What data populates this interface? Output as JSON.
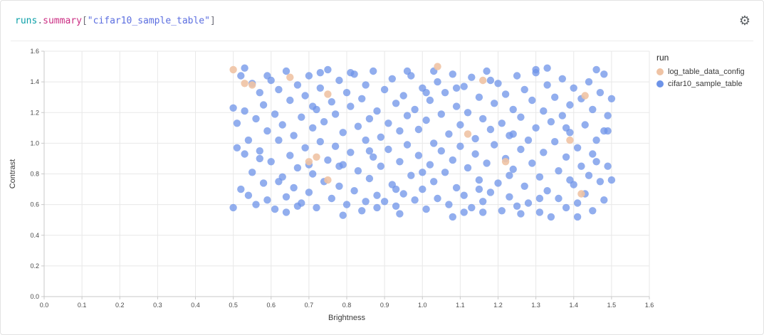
{
  "panel": {
    "title_tokens": [
      {
        "text": "runs",
        "color": "#0ba0a8"
      },
      {
        "text": ".",
        "color": "#6e6e78"
      },
      {
        "text": "summary",
        "color": "#cb2e83"
      },
      {
        "text": "[",
        "color": "#6e6e78"
      },
      {
        "text": "\"cifar10_sample_table\"",
        "color": "#5b6ee0"
      },
      {
        "text": "]",
        "color": "#6e6e78"
      }
    ],
    "gear_glyph": "⚙"
  },
  "legend": {
    "title": "run",
    "items": [
      {
        "label": "log_table_data_config",
        "color": "#efc3a4"
      },
      {
        "label": "cifar10_sample_table",
        "color": "#6d93e8"
      }
    ]
  },
  "chart_data": {
    "type": "scatter",
    "title": "",
    "xlabel": "Brightness",
    "ylabel": "Contrast",
    "xlim": [
      0,
      1.6
    ],
    "ylim": [
      0,
      1.6
    ],
    "x_tick_step": 0.1,
    "y_tick_step": 0.2,
    "grid": true,
    "legend_position": "right",
    "series": [
      {
        "name": "log_table_data_config",
        "color": "#efc3a4",
        "opacity": 0.9,
        "points": [
          [
            0.5,
            1.48
          ],
          [
            0.53,
            1.39
          ],
          [
            0.55,
            1.38
          ],
          [
            0.65,
            1.43
          ],
          [
            0.75,
            1.32
          ],
          [
            0.7,
            0.88
          ],
          [
            0.72,
            0.91
          ],
          [
            0.75,
            0.76
          ],
          [
            1.04,
            1.5
          ],
          [
            1.12,
            1.06
          ],
          [
            1.16,
            1.41
          ],
          [
            1.22,
            0.88
          ],
          [
            1.39,
            1.02
          ],
          [
            1.42,
            0.67
          ],
          [
            1.43,
            1.31
          ]
        ]
      },
      {
        "name": "cifar10_sample_table",
        "color": "#6d93e8",
        "opacity": 0.75,
        "points": [
          [
            0.5,
            0.58
          ],
          [
            0.5,
            1.23
          ],
          [
            0.51,
            0.97
          ],
          [
            0.51,
            1.13
          ],
          [
            0.52,
            0.7
          ],
          [
            0.52,
            1.44
          ],
          [
            0.53,
            0.93
          ],
          [
            0.53,
            1.21
          ],
          [
            0.54,
            0.66
          ],
          [
            0.54,
            1.02
          ],
          [
            0.55,
            1.39
          ],
          [
            0.55,
            0.81
          ],
          [
            0.56,
            1.16
          ],
          [
            0.56,
            0.6
          ],
          [
            0.57,
            1.33
          ],
          [
            0.57,
            0.95
          ],
          [
            0.58,
            1.25
          ],
          [
            0.58,
            0.74
          ],
          [
            0.59,
            1.08
          ],
          [
            0.59,
            0.63
          ],
          [
            0.6,
            1.41
          ],
          [
            0.6,
            0.88
          ],
          [
            0.61,
            1.19
          ],
          [
            0.61,
            0.57
          ],
          [
            0.62,
            1.02
          ],
          [
            0.62,
            1.35
          ],
          [
            0.63,
            0.78
          ],
          [
            0.63,
            1.12
          ],
          [
            0.64,
            0.65
          ],
          [
            0.64,
            1.47
          ],
          [
            0.65,
            0.92
          ],
          [
            0.65,
            1.28
          ],
          [
            0.66,
            0.71
          ],
          [
            0.66,
            1.05
          ],
          [
            0.67,
            1.38
          ],
          [
            0.67,
            0.84
          ],
          [
            0.68,
            1.17
          ],
          [
            0.68,
            0.61
          ],
          [
            0.69,
            1.31
          ],
          [
            0.69,
            0.97
          ],
          [
            0.7,
            0.68
          ],
          [
            0.7,
            1.44
          ],
          [
            0.71,
            1.1
          ],
          [
            0.71,
            0.8
          ],
          [
            0.72,
            1.22
          ],
          [
            0.72,
            0.58
          ],
          [
            0.73,
            1.01
          ],
          [
            0.73,
            1.36
          ],
          [
            0.74,
            0.75
          ],
          [
            0.74,
            1.14
          ],
          [
            0.75,
            0.89
          ],
          [
            0.75,
            1.48
          ],
          [
            0.76,
            0.64
          ],
          [
            0.76,
            1.27
          ],
          [
            0.77,
            0.98
          ],
          [
            0.77,
            1.19
          ],
          [
            0.78,
            0.72
          ],
          [
            0.78,
            1.41
          ],
          [
            0.79,
            0.86
          ],
          [
            0.79,
            1.07
          ],
          [
            0.8,
            0.6
          ],
          [
            0.8,
            1.33
          ],
          [
            0.81,
            0.94
          ],
          [
            0.81,
            1.24
          ],
          [
            0.82,
            0.69
          ],
          [
            0.82,
            1.45
          ],
          [
            0.83,
            1.11
          ],
          [
            0.83,
            0.82
          ],
          [
            0.84,
            1.29
          ],
          [
            0.84,
            0.56
          ],
          [
            0.85,
            1.02
          ],
          [
            0.85,
            1.38
          ],
          [
            0.86,
            0.77
          ],
          [
            0.86,
            1.16
          ],
          [
            0.87,
            0.91
          ],
          [
            0.87,
            1.47
          ],
          [
            0.88,
            0.66
          ],
          [
            0.88,
            1.21
          ],
          [
            0.89,
            1.04
          ],
          [
            0.89,
            0.85
          ],
          [
            0.9,
            1.35
          ],
          [
            0.9,
            0.62
          ],
          [
            0.91,
            1.13
          ],
          [
            0.91,
            0.96
          ],
          [
            0.92,
            1.42
          ],
          [
            0.92,
            0.73
          ],
          [
            0.93,
            1.26
          ],
          [
            0.93,
            0.59
          ],
          [
            0.94,
            1.08
          ],
          [
            0.94,
            0.88
          ],
          [
            0.95,
            1.31
          ],
          [
            0.95,
            0.67
          ],
          [
            0.96,
            1.18
          ],
          [
            0.96,
            0.99
          ],
          [
            0.97,
            1.44
          ],
          [
            0.97,
            0.79
          ],
          [
            0.98,
            1.22
          ],
          [
            0.98,
            0.63
          ],
          [
            0.99,
            1.09
          ],
          [
            0.99,
            0.92
          ],
          [
            1.0,
            1.36
          ],
          [
            1.0,
            0.7
          ],
          [
            1.01,
            1.15
          ],
          [
            1.01,
            0.57
          ],
          [
            1.02,
            0.86
          ],
          [
            1.02,
            1.28
          ],
          [
            1.03,
            1.0
          ],
          [
            1.03,
            0.75
          ],
          [
            1.04,
            1.4
          ],
          [
            1.04,
            0.64
          ],
          [
            1.05,
            1.19
          ],
          [
            1.05,
            0.95
          ],
          [
            1.06,
            1.33
          ],
          [
            1.06,
            0.81
          ],
          [
            1.07,
            1.06
          ],
          [
            1.07,
            0.6
          ],
          [
            1.08,
            1.45
          ],
          [
            1.08,
            0.89
          ],
          [
            1.09,
            1.24
          ],
          [
            1.09,
            0.71
          ],
          [
            1.1,
            1.12
          ],
          [
            1.1,
            0.98
          ],
          [
            1.11,
            1.37
          ],
          [
            1.11,
            0.66
          ],
          [
            1.12,
            1.2
          ],
          [
            1.12,
            0.84
          ],
          [
            1.13,
            1.43
          ],
          [
            1.13,
            0.58
          ],
          [
            1.14,
            1.03
          ],
          [
            1.14,
            0.93
          ],
          [
            1.15,
            1.3
          ],
          [
            1.15,
            0.76
          ],
          [
            1.16,
            1.16
          ],
          [
            1.16,
            0.62
          ],
          [
            1.17,
            1.47
          ],
          [
            1.17,
            0.87
          ],
          [
            1.18,
            1.09
          ],
          [
            1.18,
            0.68
          ],
          [
            1.19,
            1.26
          ],
          [
            1.19,
            0.99
          ],
          [
            1.2,
            1.39
          ],
          [
            1.2,
            0.74
          ],
          [
            1.21,
            1.13
          ],
          [
            1.21,
            0.56
          ],
          [
            1.22,
            0.9
          ],
          [
            1.22,
            1.32
          ],
          [
            1.23,
            0.65
          ],
          [
            1.23,
            1.05
          ],
          [
            1.24,
            1.22
          ],
          [
            1.24,
            0.83
          ],
          [
            1.25,
            1.44
          ],
          [
            1.25,
            0.59
          ],
          [
            1.26,
            1.17
          ],
          [
            1.26,
            0.96
          ],
          [
            1.27,
            1.35
          ],
          [
            1.27,
            0.72
          ],
          [
            1.28,
            1.02
          ],
          [
            1.28,
            0.61
          ],
          [
            1.29,
            1.28
          ],
          [
            1.29,
            0.87
          ],
          [
            1.3,
            1.1
          ],
          [
            1.3,
            1.46
          ],
          [
            1.31,
            0.78
          ],
          [
            1.31,
            0.55
          ],
          [
            1.32,
            1.21
          ],
          [
            1.32,
            0.94
          ],
          [
            1.33,
            1.38
          ],
          [
            1.33,
            0.69
          ],
          [
            1.34,
            1.14
          ],
          [
            1.34,
            0.52
          ],
          [
            1.35,
            1.01
          ],
          [
            1.35,
            1.3
          ],
          [
            1.36,
            0.82
          ],
          [
            1.36,
            0.64
          ],
          [
            1.37,
            1.42
          ],
          [
            1.37,
            1.18
          ],
          [
            1.38,
            0.91
          ],
          [
            1.38,
            0.58
          ],
          [
            1.39,
            1.25
          ],
          [
            1.39,
            1.07
          ],
          [
            1.4,
            0.73
          ],
          [
            1.4,
            1.36
          ],
          [
            1.41,
            0.97
          ],
          [
            1.41,
            0.61
          ],
          [
            1.42,
            1.29
          ],
          [
            1.42,
            0.85
          ],
          [
            1.43,
            1.12
          ],
          [
            1.43,
            0.67
          ],
          [
            1.44,
            1.4
          ],
          [
            1.44,
            0.79
          ],
          [
            1.45,
            1.22
          ],
          [
            1.45,
            0.56
          ],
          [
            1.46,
            1.48
          ],
          [
            1.46,
            0.88
          ],
          [
            1.47,
            1.33
          ],
          [
            1.47,
            0.75
          ],
          [
            1.48,
            1.45
          ],
          [
            1.48,
            0.63
          ],
          [
            1.49,
            1.08
          ],
          [
            1.49,
            0.85
          ],
          [
            1.5,
            1.29
          ],
          [
            1.5,
            0.76
          ],
          [
            0.53,
            1.49
          ],
          [
            0.59,
            1.44
          ],
          [
            0.67,
            0.59
          ],
          [
            0.73,
            1.46
          ],
          [
            0.81,
            1.46
          ],
          [
            0.88,
            0.58
          ],
          [
            0.96,
            1.47
          ],
          [
            1.03,
            1.47
          ],
          [
            1.11,
            0.55
          ],
          [
            1.18,
            1.41
          ],
          [
            1.26,
            0.54
          ],
          [
            1.33,
            1.49
          ],
          [
            1.41,
            0.52
          ],
          [
            1.48,
            1.08
          ],
          [
            0.62,
            0.75
          ],
          [
            0.7,
            0.86
          ],
          [
            0.78,
            0.85
          ],
          [
            0.85,
            0.62
          ],
          [
            0.93,
            0.7
          ],
          [
            1.0,
            0.81
          ],
          [
            1.08,
            0.52
          ],
          [
            1.15,
            0.7
          ],
          [
            1.23,
            0.79
          ],
          [
            1.3,
            1.48
          ],
          [
            1.38,
            1.1
          ],
          [
            1.45,
            0.93
          ],
          [
            0.57,
            0.9
          ],
          [
            0.64,
            0.55
          ],
          [
            0.71,
            1.24
          ],
          [
            0.79,
            0.53
          ],
          [
            0.86,
            0.95
          ],
          [
            0.94,
            0.54
          ],
          [
            1.01,
            1.33
          ],
          [
            1.09,
            1.36
          ],
          [
            1.16,
            0.55
          ],
          [
            1.24,
            1.06
          ],
          [
            1.31,
            0.64
          ],
          [
            1.39,
            0.76
          ],
          [
            1.46,
            1.02
          ],
          [
            1.49,
            1.18
          ]
        ]
      }
    ]
  }
}
